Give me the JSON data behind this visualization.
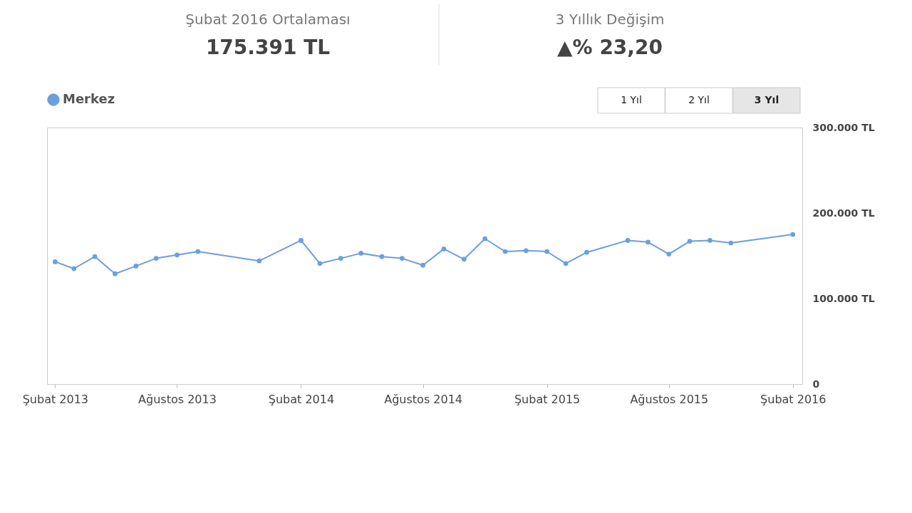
{
  "chart_data": {
    "type": "line",
    "annotations": [
      "Şubat 2016 Ortalaması",
      "175.391 TL",
      "3 Yıllık Değişim",
      "▲% 23,20",
      "1 Yıl",
      "2 Yıl",
      "3 Yıl"
    ],
    "x": [
      "2013-02",
      "2013-03",
      "2013-04",
      "2013-05",
      "2013-06",
      "2013-07",
      "2013-08",
      "2013-09",
      "2013-12",
      "2014-02",
      "2014-03",
      "2014-04",
      "2014-05",
      "2014-06",
      "2014-07",
      "2014-08",
      "2014-09",
      "2014-10",
      "2014-11",
      "2014-12",
      "2015-01",
      "2015-02",
      "2015-03",
      "2015-04",
      "2015-06",
      "2015-07",
      "2015-08",
      "2015-09",
      "2015-10",
      "2015-11",
      "2016-02"
    ],
    "series": [
      {
        "name": "Merkez",
        "color": "#6a9fe0",
        "values": [
          143000,
          135000,
          149000,
          129000,
          138000,
          147000,
          151000,
          155000,
          144000,
          168000,
          141000,
          147000,
          153000,
          149000,
          147000,
          139000,
          158000,
          146000,
          170000,
          155000,
          156000,
          155000,
          141000,
          154000,
          168000,
          166000,
          152000,
          167000,
          168000,
          165000,
          175000
        ]
      }
    ],
    "xlim": [
      "2013-01-20",
      "2016-02-15"
    ],
    "xticks": [
      {
        "value": "2013-02",
        "label": "Şubat 2013"
      },
      {
        "value": "2013-08",
        "label": "Ağustos 2013"
      },
      {
        "value": "2014-02",
        "label": "Şubat 2014"
      },
      {
        "value": "2014-08",
        "label": "Ağustos 2014"
      },
      {
        "value": "2015-02",
        "label": "Şubat 2015"
      },
      {
        "value": "2015-08",
        "label": "Ağustos 2015"
      },
      {
        "value": "2016-02",
        "label": "Şubat 2016"
      }
    ],
    "ylim": [
      0,
      300000
    ],
    "yticks": [
      0,
      {
        "value": 100000,
        "label": "100.000 TL"
      },
      {
        "value": 200000,
        "label": "200.000 TL"
      },
      {
        "value": 300000,
        "label": "300.000 TL"
      }
    ],
    "marker": "circle",
    "line_style": "solid",
    "grid": false,
    "legend": "top left"
  }
}
